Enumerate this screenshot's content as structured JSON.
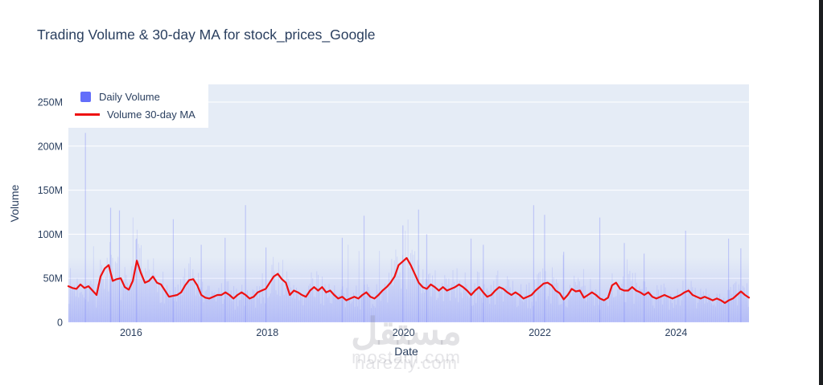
{
  "page": {
    "title": "Trading Volume & 30-day MA for stock_prices_Google"
  },
  "chart_data": {
    "type": "bar+line",
    "title": "Trading Volume & 30-day MA for stock_prices_Google",
    "xlabel": "Date",
    "ylabel": "Volume",
    "x_domain": [
      2015.08,
      2025.07
    ],
    "y_domain_millions": [
      0,
      271
    ],
    "x_ticks": {
      "values": [
        2016,
        2018,
        2020,
        2022,
        2024
      ],
      "labels": [
        "2016",
        "2018",
        "2020",
        "2022",
        "2024"
      ]
    },
    "y_ticks": {
      "values_M": [
        0,
        50,
        100,
        150,
        200,
        250
      ],
      "labels": [
        "0",
        "50M",
        "100M",
        "150M",
        "200M",
        "250M"
      ]
    },
    "grid": "horizontal white gridlines on light plot background",
    "legend": {
      "position": "top-left",
      "items": [
        {
          "label": "Daily Volume",
          "type": "bar",
          "color": "#636efa"
        },
        {
          "label": "Volume 30-day MA",
          "type": "line",
          "color": "#ee1111"
        }
      ]
    },
    "colors": {
      "plot_bg": "#e5ecf6",
      "bar": "#636efa",
      "ma_line": "#ee1111",
      "text": "#2a3f5f",
      "grid": "#ffffff"
    },
    "ma_series": {
      "name": "Volume 30-day MA",
      "units": "millions of shares, sampled ~every 3 weeks from 2015.08 to 2025.07",
      "values_M": [
        41,
        39,
        38,
        43,
        39,
        41,
        36,
        31,
        52,
        61,
        65,
        47,
        49,
        50,
        40,
        37,
        47,
        70,
        56,
        45,
        47,
        52,
        45,
        43,
        36,
        29,
        30,
        31,
        34,
        42,
        48,
        49,
        42,
        31,
        28,
        27,
        29,
        31,
        31,
        34,
        31,
        27,
        31,
        34,
        31,
        27,
        29,
        34,
        36,
        38,
        45,
        52,
        55,
        49,
        45,
        31,
        36,
        34,
        31,
        29,
        36,
        40,
        36,
        40,
        34,
        36,
        31,
        27,
        29,
        25,
        27,
        29,
        27,
        31,
        34,
        29,
        27,
        31,
        36,
        40,
        45,
        52,
        65,
        69,
        73,
        65,
        55,
        45,
        40,
        38,
        43,
        40,
        36,
        40,
        36,
        38,
        40,
        43,
        40,
        36,
        31,
        36,
        40,
        34,
        29,
        31,
        36,
        40,
        38,
        34,
        31,
        34,
        31,
        27,
        29,
        31,
        36,
        40,
        44,
        45,
        42,
        36,
        33,
        26,
        31,
        38,
        35,
        36,
        28,
        31,
        34,
        31,
        27,
        25,
        28,
        42,
        45,
        38,
        36,
        36,
        40,
        36,
        34,
        31,
        34,
        29,
        27,
        29,
        31,
        29,
        27,
        29,
        31,
        34,
        36,
        31,
        29,
        27,
        29,
        27,
        25,
        27,
        25,
        22,
        25,
        27,
        31,
        35,
        31,
        28
      ]
    },
    "daily_volume": {
      "name": "Daily Volume",
      "units": "millions of shares",
      "typical_range_M": [
        10,
        60
      ],
      "spikes": [
        [
          2015.33,
          215
        ],
        [
          2015.7,
          130
        ],
        [
          2015.83,
          127
        ],
        [
          2016.08,
          95
        ],
        [
          2016.62,
          117
        ],
        [
          2017.03,
          88
        ],
        [
          2017.38,
          96
        ],
        [
          2017.68,
          133
        ],
        [
          2017.98,
          85
        ],
        [
          2019.1,
          96
        ],
        [
          2019.42,
          121
        ],
        [
          2019.99,
          110
        ],
        [
          2020.22,
          128
        ],
        [
          2020.34,
          100
        ],
        [
          2020.99,
          95
        ],
        [
          2021.17,
          88
        ],
        [
          2021.91,
          133
        ],
        [
          2022.07,
          122
        ],
        [
          2022.35,
          80
        ],
        [
          2022.88,
          119
        ],
        [
          2023.24,
          90
        ],
        [
          2023.53,
          78
        ],
        [
          2024.14,
          104
        ],
        [
          2024.77,
          95
        ],
        [
          2024.95,
          84
        ]
      ],
      "render": {
        "count": 500,
        "seed": 7,
        "opacity": 0.16
      }
    }
  },
  "watermark": {
    "arabic": "مستقل",
    "line1": "mostaql.com",
    "line2": "hareziy.com"
  }
}
